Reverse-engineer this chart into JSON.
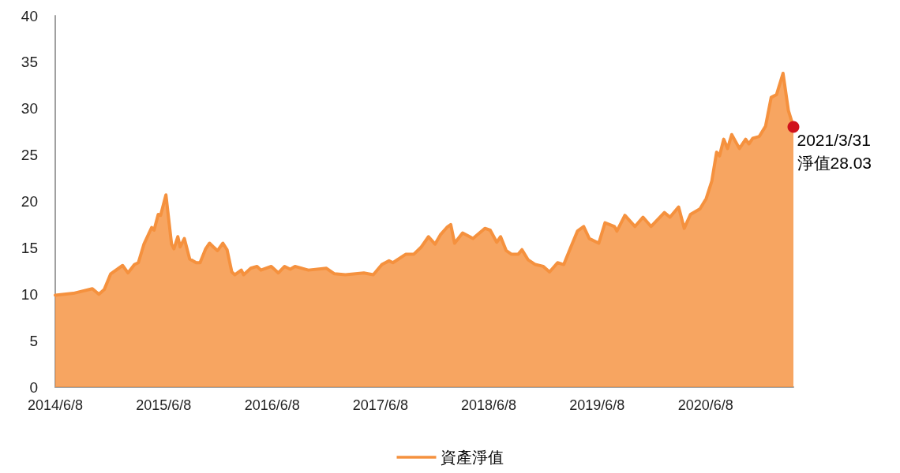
{
  "chart_data": {
    "type": "area",
    "legend": "bottom",
    "grid": false,
    "marker": "none",
    "line_style": "solid",
    "xlim": [
      "2014-06-08",
      "2021-03-31"
    ],
    "xticks": [
      {
        "value": "2014-06-08",
        "label": "2014/6/8"
      },
      {
        "value": "2015-06-08",
        "label": "2015/6/8"
      },
      {
        "value": "2016-06-08",
        "label": "2016/6/8"
      },
      {
        "value": "2017-06-08",
        "label": "2017/6/8"
      },
      {
        "value": "2018-06-08",
        "label": "2018/6/8"
      },
      {
        "value": "2019-06-08",
        "label": "2019/6/8"
      },
      {
        "value": "2020-06-08",
        "label": "2020/6/8"
      }
    ],
    "ylim": [
      0,
      40
    ],
    "yticks": [
      0,
      5,
      10,
      15,
      20,
      25,
      30,
      35,
      40
    ],
    "series": [
      {
        "name": "資產淨值",
        "color": "#f5913e",
        "x": [
          "2014-06-08",
          "2014-08-08",
          "2014-10-11",
          "2014-11-02",
          "2014-11-20",
          "2014-12-12",
          "2015-01-21",
          "2015-02-08",
          "2015-03-02",
          "2015-03-15",
          "2015-04-03",
          "2015-04-29",
          "2015-05-07",
          "2015-05-21",
          "2015-05-29",
          "2015-06-16",
          "2015-07-05",
          "2015-07-13",
          "2015-07-26",
          "2015-08-03",
          "2015-08-17",
          "2015-09-04",
          "2015-09-26",
          "2015-10-09",
          "2015-10-28",
          "2015-11-10",
          "2015-11-23",
          "2015-12-07",
          "2015-12-25",
          "2016-01-08",
          "2016-01-24",
          "2016-02-03",
          "2016-02-25",
          "2016-03-04",
          "2016-03-28",
          "2016-04-18",
          "2016-05-01",
          "2016-06-05",
          "2016-06-29",
          "2016-07-20",
          "2016-08-08",
          "2016-08-24",
          "2016-10-08",
          "2016-12-08",
          "2017-01-04",
          "2017-02-10",
          "2017-04-13",
          "2017-05-15",
          "2017-06-13",
          "2017-07-07",
          "2017-07-20",
          "2017-09-01",
          "2017-09-28",
          "2017-10-24",
          "2017-11-17",
          "2017-12-09",
          "2017-12-27",
          "2018-01-18",
          "2018-01-31",
          "2018-02-13",
          "2018-03-12",
          "2018-04-16",
          "2018-05-26",
          "2018-06-13",
          "2018-07-05",
          "2018-07-18",
          "2018-08-06",
          "2018-08-24",
          "2018-09-15",
          "2018-09-28",
          "2018-10-19",
          "2018-11-12",
          "2018-12-09",
          "2018-12-30",
          "2019-01-26",
          "2019-02-16",
          "2019-03-12",
          "2019-04-03",
          "2019-04-24",
          "2019-05-13",
          "2019-06-14",
          "2019-07-05",
          "2019-08-06",
          "2019-08-14",
          "2019-09-10",
          "2019-10-14",
          "2019-11-10",
          "2019-12-07",
          "2020-01-21",
          "2020-02-09",
          "2020-03-09",
          "2020-03-28",
          "2020-04-18",
          "2020-05-20",
          "2020-06-10",
          "2020-06-29",
          "2020-07-15",
          "2020-07-25",
          "2020-08-08",
          "2020-08-21",
          "2020-09-04",
          "2020-09-30",
          "2020-10-21",
          "2020-11-01",
          "2020-11-14",
          "2020-12-06",
          "2020-12-27",
          "2021-01-15",
          "2021-02-02",
          "2021-02-24",
          "2021-03-14",
          "2021-03-31"
        ],
        "values": [
          9.9,
          10.1,
          10.6,
          10.0,
          10.5,
          12.2,
          13.1,
          12.3,
          13.2,
          13.4,
          15.4,
          17.2,
          16.9,
          18.6,
          18.5,
          20.7,
          15.4,
          14.9,
          16.2,
          15.1,
          16.0,
          13.8,
          13.4,
          13.4,
          14.9,
          15.5,
          15.1,
          14.7,
          15.5,
          14.8,
          12.4,
          12.1,
          12.6,
          12.1,
          12.8,
          13.0,
          12.6,
          13.0,
          12.3,
          13.0,
          12.7,
          13.0,
          12.6,
          12.8,
          12.2,
          12.1,
          12.3,
          12.1,
          13.2,
          13.6,
          13.4,
          14.3,
          14.3,
          15.1,
          16.2,
          15.4,
          16.4,
          17.2,
          17.5,
          15.5,
          16.6,
          16.0,
          17.1,
          16.9,
          15.6,
          16.2,
          14.7,
          14.3,
          14.3,
          14.8,
          13.7,
          13.2,
          13.0,
          12.4,
          13.4,
          13.2,
          15.1,
          16.8,
          17.3,
          16.0,
          15.5,
          17.7,
          17.3,
          16.8,
          18.5,
          17.3,
          18.3,
          17.3,
          18.8,
          18.3,
          19.4,
          17.1,
          18.6,
          19.2,
          20.3,
          22.2,
          25.3,
          24.9,
          26.7,
          25.7,
          27.2,
          25.7,
          26.7,
          26.2,
          26.8,
          27.0,
          28.1,
          31.2,
          31.5,
          33.8,
          29.8,
          28.03
        ]
      }
    ],
    "annotations": [
      {
        "text": "2021/3/31\n淨值28.03",
        "x": "2021-03-31",
        "y": 28.03
      }
    ]
  }
}
